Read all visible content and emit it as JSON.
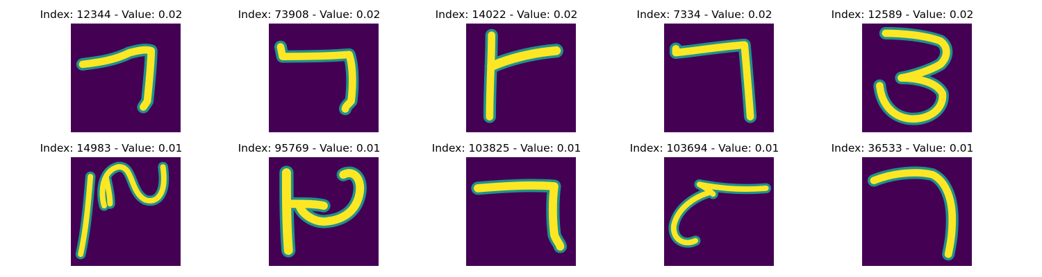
{
  "figure": {
    "panels": [
      {
        "title": "Index: 12344 - Value: 0.02",
        "index": 12344,
        "value": 0.02,
        "glyph": "seven-like stroke"
      },
      {
        "title": "Index: 73908 - Value: 0.02",
        "index": 73908,
        "value": 0.02,
        "glyph": "seven-like stroke"
      },
      {
        "title": "Index: 14022 - Value: 0.02",
        "index": 14022,
        "value": 0.02,
        "glyph": "sideways-t stroke"
      },
      {
        "title": "Index: 7334 - Value: 0.02",
        "index": 7334,
        "value": 0.02,
        "glyph": "seven-like stroke"
      },
      {
        "title": "Index: 12589 - Value: 0.02",
        "index": 12589,
        "value": 0.02,
        "glyph": "three-like stroke"
      },
      {
        "title": "Index: 14983 - Value: 0.01",
        "index": 14983,
        "value": 0.01,
        "glyph": "curly stroke"
      },
      {
        "title": "Index: 95769 - Value: 0.01",
        "index": 95769,
        "value": 0.01,
        "glyph": "p-like stroke"
      },
      {
        "title": "Index: 103825 - Value: 0.01",
        "index": 103825,
        "value": 0.01,
        "glyph": "seven-like stroke"
      },
      {
        "title": "Index: 103694 - Value: 0.01",
        "index": 103694,
        "value": 0.01,
        "glyph": "hook stroke"
      },
      {
        "title": "Index: 36533 - Value: 0.01",
        "index": 36533,
        "value": 0.01,
        "glyph": "seven-like stroke"
      }
    ],
    "colors": {
      "background": "#440154",
      "stroke_core": "#fde725",
      "stroke_edge": "#21918c"
    }
  }
}
